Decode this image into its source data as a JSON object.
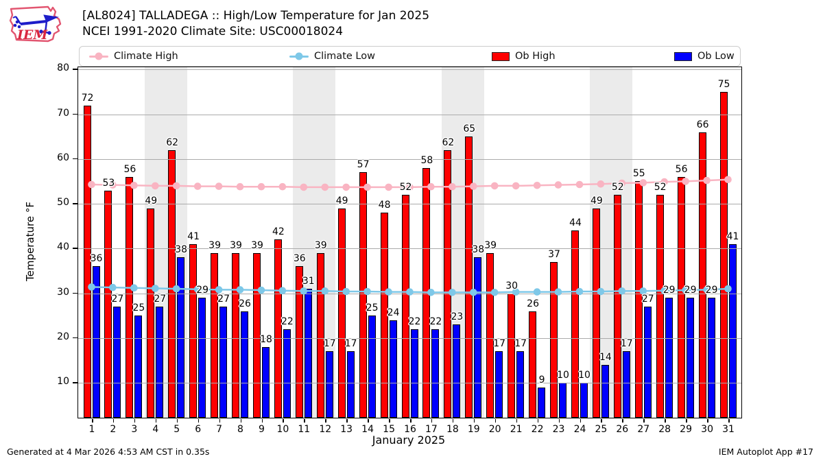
{
  "header": {
    "title_line1": "[AL8024] TALLADEGA :: High/Low Temperature for Jan 2025",
    "title_line2": "NCEI 1991-2020 Climate Site: USC00018024",
    "logo_text": "IEM"
  },
  "legend": {
    "items": [
      {
        "label": "Climate High",
        "type": "line",
        "color": "#f9b4c2"
      },
      {
        "label": "Climate Low",
        "type": "line",
        "color": "#7ec8e8"
      },
      {
        "label": "Ob High",
        "type": "box",
        "color": "#fe0000"
      },
      {
        "label": "Ob Low",
        "type": "box",
        "color": "#0000fe"
      }
    ]
  },
  "chart_data": {
    "type": "grouped-bar+line",
    "title": "[AL8024] TALLADEGA :: High/Low Temperature for Jan 2025",
    "subtitle": "NCEI 1991-2020 Climate Site: USC00018024",
    "xlabel": "January 2025",
    "ylabel": "Temperature °F",
    "x": [
      1,
      2,
      3,
      4,
      5,
      6,
      7,
      8,
      9,
      10,
      11,
      12,
      13,
      14,
      15,
      16,
      17,
      18,
      19,
      20,
      21,
      22,
      23,
      24,
      25,
      26,
      27,
      28,
      29,
      30,
      31
    ],
    "series": [
      {
        "name": "Ob High",
        "type": "bar",
        "color": "#fe0000",
        "values": [
          72,
          53,
          56,
          49,
          62,
          41,
          39,
          39,
          39,
          42,
          36,
          39,
          49,
          57,
          48,
          52,
          58,
          62,
          65,
          39,
          30,
          26,
          37,
          44,
          49,
          52,
          55,
          52,
          56,
          66,
          75
        ]
      },
      {
        "name": "Ob Low",
        "type": "bar",
        "color": "#0000fe",
        "values": [
          36,
          27,
          25,
          27,
          38,
          29,
          27,
          26,
          18,
          22,
          31,
          17,
          17,
          25,
          24,
          22,
          22,
          23,
          38,
          17,
          17,
          9,
          10,
          10,
          14,
          17,
          27,
          29,
          29,
          29,
          41
        ]
      },
      {
        "name": "Climate High",
        "type": "line",
        "color": "#f9b4c2",
        "values": [
          54.3,
          54.2,
          54.1,
          54.0,
          54.0,
          53.9,
          53.9,
          53.8,
          53.8,
          53.8,
          53.7,
          53.7,
          53.7,
          53.7,
          53.7,
          53.7,
          53.8,
          53.8,
          53.9,
          54.0,
          54.0,
          54.1,
          54.2,
          54.3,
          54.4,
          54.6,
          54.7,
          54.9,
          55.0,
          55.2,
          55.4
        ]
      },
      {
        "name": "Climate Low",
        "type": "line",
        "color": "#7ec8e8",
        "values": [
          31.4,
          31.3,
          31.2,
          31.1,
          31.0,
          30.9,
          30.8,
          30.8,
          30.7,
          30.6,
          30.5,
          30.5,
          30.4,
          30.4,
          30.3,
          30.3,
          30.2,
          30.2,
          30.2,
          30.2,
          30.3,
          30.3,
          30.3,
          30.4,
          30.4,
          30.5,
          30.5,
          30.6,
          30.7,
          30.8,
          31.0
        ]
      }
    ],
    "ylim": [
      2.2,
      80.5
    ],
    "yticks": [
      10,
      20,
      30,
      40,
      50,
      60,
      70,
      80
    ],
    "weekend_bands": [
      [
        4,
        5
      ],
      [
        11,
        12
      ],
      [
        18,
        19
      ],
      [
        25,
        26
      ]
    ],
    "grid": "horizontal",
    "legend_position": "top"
  },
  "footer": {
    "left": "Generated at 4 Mar 2026 4:53 AM CST in 0.35s",
    "right": "IEM Autoplot App #17"
  }
}
